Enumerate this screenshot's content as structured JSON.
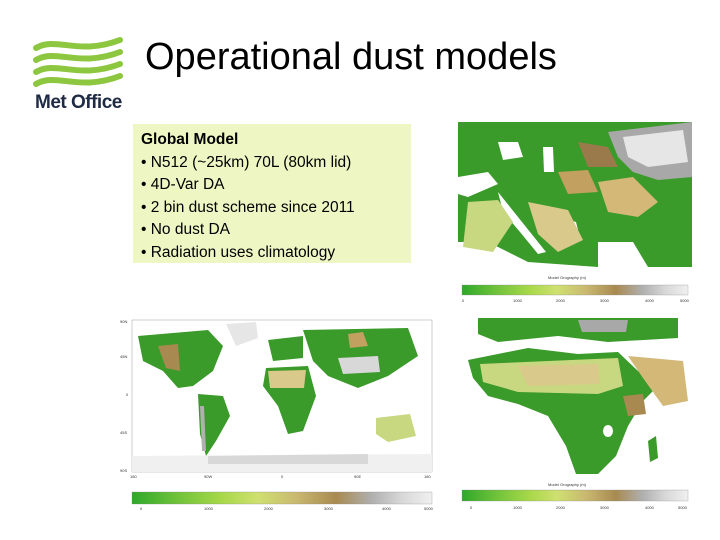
{
  "logo": {
    "name": "Met Office",
    "icon": "met-office-wave-logo",
    "colors": {
      "green": "#8dc63f",
      "navy": "#1f2a44"
    }
  },
  "slide": {
    "title": "Operational dust models"
  },
  "infobox": {
    "heading": "Global Model",
    "bullets": [
      "• N512 (~25km) 70L (80km lid)",
      "• 4D-Var DA",
      "• 2 bin dust scheme since 2011",
      "• No dust DA",
      "• Radiation uses climatology"
    ],
    "background": "#eef7c4"
  },
  "maps": {
    "world_lat_labels": [
      "90N",
      "45N",
      "0",
      "45S",
      "90S"
    ],
    "world_lon_labels": [
      "180",
      "90W",
      "0",
      "90E",
      "180"
    ],
    "colorbar_palette": [
      "#2ea82a",
      "#6fc23a",
      "#a8d84a",
      "#cfe070",
      "#c9b870",
      "#a88a50",
      "#b0b0b0",
      "#d8d8d8",
      "#f0f0f0"
    ]
  }
}
